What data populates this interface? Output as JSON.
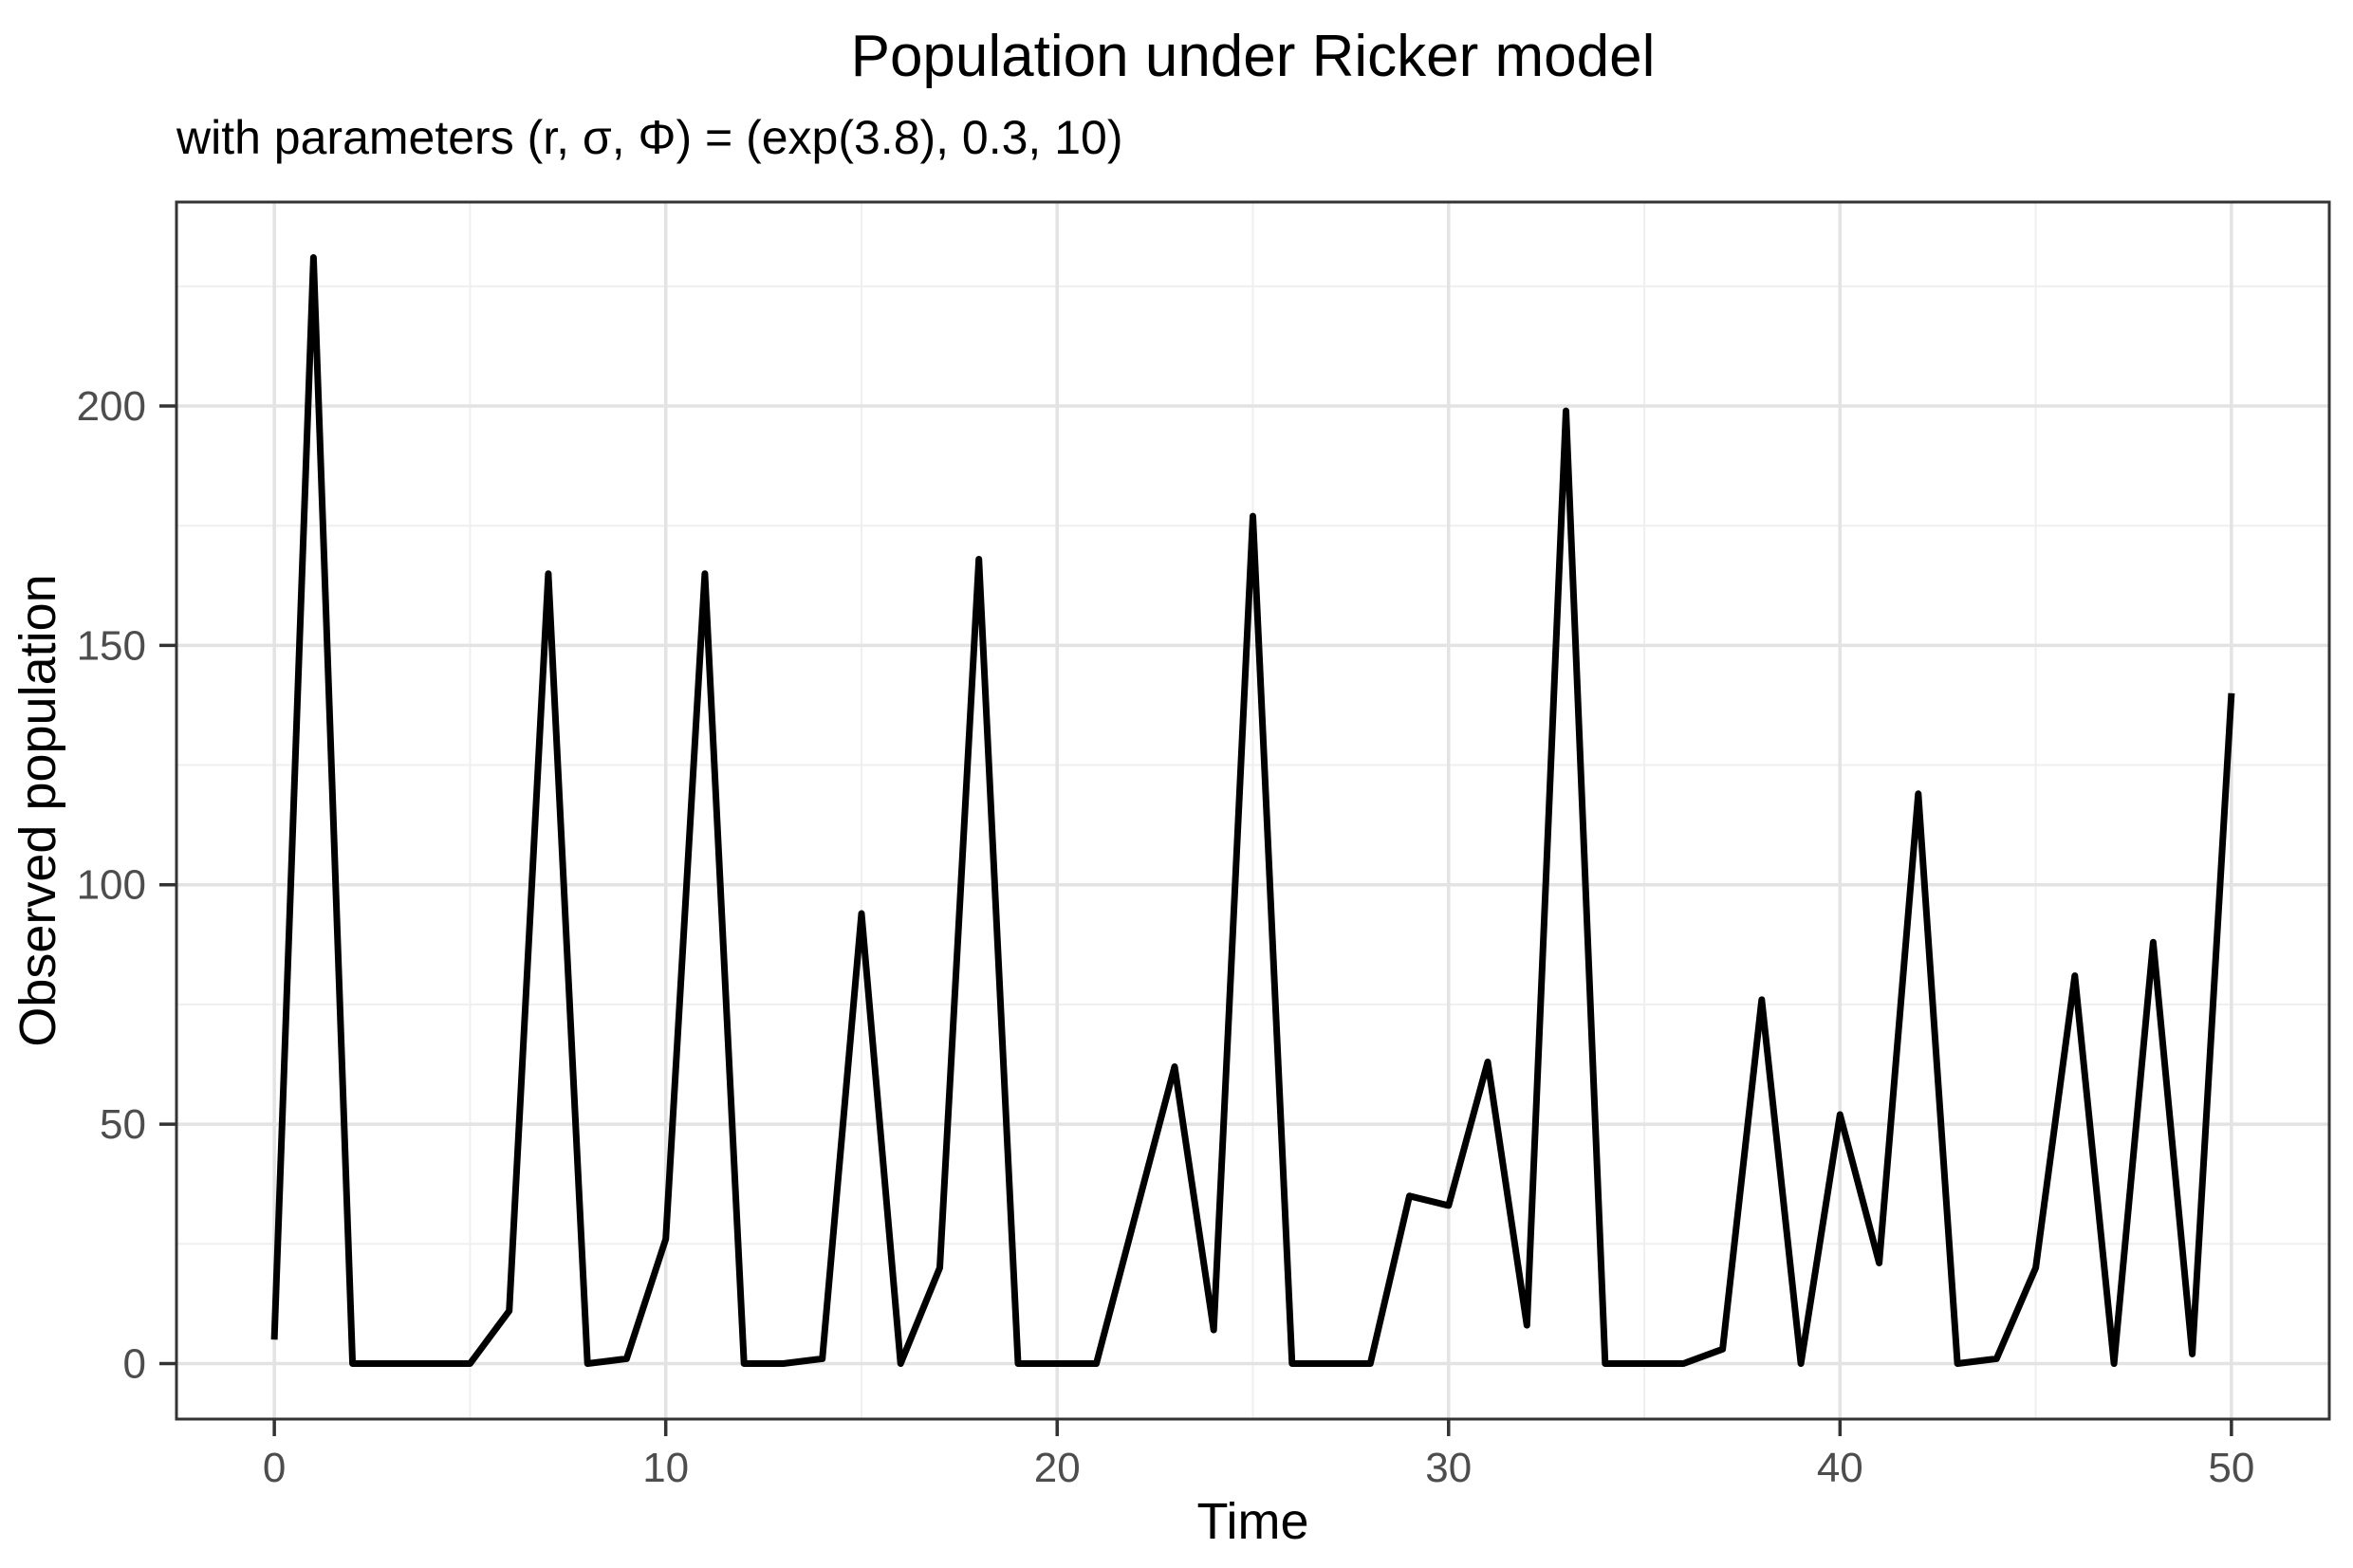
{
  "title": "Population under Ricker model",
  "subtitle": "with parameters (r, σ, Φ) = (exp(3.8), 0.3, 10)",
  "chart_data": {
    "type": "line",
    "title": "Population under Ricker model",
    "subtitle": "with parameters (r, σ, Φ) = (exp(3.8), 0.3, 10)",
    "xlabel": "Time",
    "ylabel": "Observed population",
    "x": [
      0,
      1,
      2,
      3,
      4,
      5,
      6,
      7,
      8,
      9,
      10,
      11,
      12,
      13,
      14,
      15,
      16,
      17,
      18,
      19,
      20,
      21,
      22,
      23,
      24,
      25,
      26,
      27,
      28,
      29,
      30,
      31,
      32,
      33,
      34,
      35,
      36,
      37,
      38,
      39,
      40,
      41,
      42,
      43,
      44,
      45,
      46,
      47,
      48,
      49,
      50
    ],
    "y": [
      5,
      231,
      0,
      0,
      0,
      0,
      11,
      165,
      0,
      1,
      26,
      165,
      0,
      0,
      1,
      94,
      0,
      20,
      168,
      0,
      0,
      0,
      31,
      62,
      7,
      177,
      0,
      0,
      0,
      35,
      33,
      63,
      8,
      199,
      0,
      0,
      0,
      3,
      76,
      0,
      52,
      21,
      119,
      0,
      1,
      20,
      81,
      0,
      88,
      2,
      140
    ],
    "x_ticks": [
      0,
      10,
      20,
      30,
      40,
      50
    ],
    "y_ticks": [
      0,
      50,
      100,
      150,
      200
    ],
    "x_minor": [
      5,
      15,
      25,
      35,
      45
    ],
    "y_minor": [
      25,
      75,
      125,
      175,
      225
    ],
    "xlim": [
      -2.5,
      52.5
    ],
    "ylim": [
      -11.6,
      242.6
    ],
    "grid": true,
    "legend_position": "none",
    "colors": {
      "series_line": "#000000",
      "grid_major": "#e3e3e3",
      "grid_minor": "#efefef",
      "panel_border": "#343434",
      "tick_mark": "#333333",
      "tick_label": "#4d4d4d",
      "background": "#ffffff"
    }
  }
}
